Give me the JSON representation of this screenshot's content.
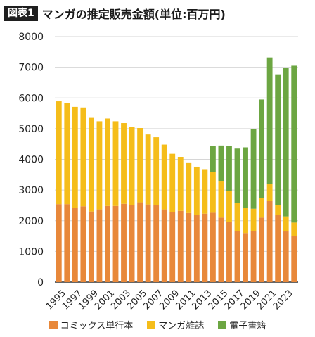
{
  "header": {
    "badge": "図表1",
    "title": "マンガの推定販売金額(単位:百万円)"
  },
  "colors": {
    "comics": "#e8883a",
    "magazines": "#f5bd1a",
    "digital": "#6ca642",
    "grid": "#d6d6d6",
    "axis": "#333333"
  },
  "chart_data": {
    "type": "bar",
    "stacked": true,
    "title": "マンガの推定販売金額(単位:百万円)",
    "xlabel": "",
    "ylabel": "",
    "ylim": [
      0,
      8000
    ],
    "yticks": [
      0,
      1000,
      2000,
      3000,
      4000,
      5000,
      6000,
      7000,
      8000
    ],
    "grid": true,
    "legend_position": "bottom",
    "categories": [
      "1995",
      "1996",
      "1997",
      "1998",
      "1999",
      "2000",
      "2001",
      "2002",
      "2003",
      "2004",
      "2005",
      "2006",
      "2007",
      "2008",
      "2009",
      "2010",
      "2011",
      "2012",
      "2013",
      "2014",
      "2015",
      "2016",
      "2017",
      "2018",
      "2019",
      "2020",
      "2021",
      "2022",
      "2023",
      "2024"
    ],
    "xtick_labels": [
      "1995",
      "1997",
      "1999",
      "2001",
      "2003",
      "2005",
      "2007",
      "2009",
      "2011",
      "2013",
      "2015",
      "2017",
      "2019",
      "2021",
      "2023"
    ],
    "series": [
      {
        "name": "コミックス単行本",
        "color_key": "comics",
        "values": [
          2540,
          2540,
          2430,
          2470,
          2300,
          2370,
          2480,
          2480,
          2550,
          2500,
          2600,
          2530,
          2500,
          2370,
          2270,
          2320,
          2250,
          2200,
          2230,
          2260,
          2100,
          1950,
          1670,
          1600,
          1660,
          2100,
          2650,
          2200,
          1650,
          1490
        ]
      },
      {
        "name": "マンガ雑誌",
        "color_key": "magazines",
        "values": [
          3350,
          3300,
          3280,
          3220,
          3050,
          2870,
          2850,
          2760,
          2630,
          2560,
          2420,
          2280,
          2220,
          2110,
          1910,
          1760,
          1650,
          1560,
          1450,
          1330,
          1200,
          1030,
          900,
          830,
          730,
          650,
          550,
          300,
          490,
          450
        ]
      },
      {
        "name": "電子書籍",
        "color_key": "digital",
        "values": [
          0,
          0,
          0,
          0,
          0,
          0,
          0,
          0,
          0,
          0,
          0,
          0,
          0,
          0,
          0,
          0,
          0,
          0,
          0,
          850,
          1150,
          1460,
          1780,
          1960,
          2590,
          3200,
          4120,
          4270,
          4830,
          5110
        ]
      }
    ]
  }
}
